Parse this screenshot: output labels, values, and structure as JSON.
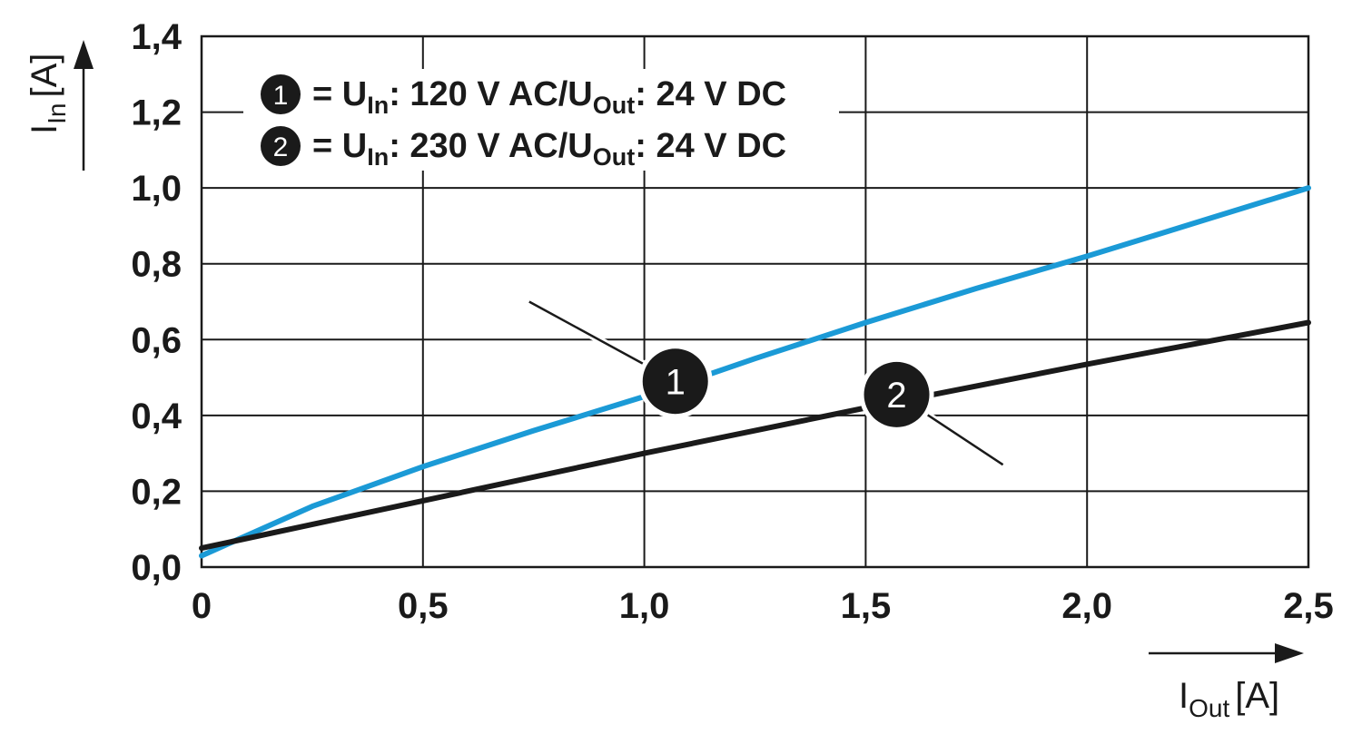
{
  "chart_data": {
    "type": "line",
    "xlim": [
      0,
      2.5
    ],
    "ylim": [
      0,
      1.4
    ],
    "x_ticks": [
      "0",
      "0,5",
      "1,0",
      "1,5",
      "2,0",
      "2,5"
    ],
    "y_ticks": [
      "0,0",
      "0,2",
      "0,4",
      "0,6",
      "0,8",
      "1,0",
      "1,2",
      "1,4"
    ],
    "grid": true,
    "xlabel": {
      "main": "I",
      "sub": "Out",
      "unit": "[A]"
    },
    "ylabel": {
      "main": "I",
      "sub": "In",
      "unit": "[A]"
    },
    "legend_position": "top-left",
    "series": [
      {
        "id": "1",
        "color": "#1b9ad6",
        "legend": {
          "number": "1",
          "pre": "= U",
          "sub1": "In",
          "mid": ": 120 V AC/U",
          "sub2": "Out",
          "post": ": 24 V DC"
        },
        "x": [
          0,
          0.25,
          0.5,
          0.75,
          1.0,
          1.25,
          1.5,
          1.75,
          2.0,
          2.25,
          2.5
        ],
        "y": [
          0.03,
          0.16,
          0.265,
          0.36,
          0.45,
          0.55,
          0.645,
          0.735,
          0.82,
          0.91,
          1.0
        ]
      },
      {
        "id": "2",
        "color": "#1a1a1a",
        "legend": {
          "number": "2",
          "pre": "= U",
          "sub1": "In",
          "mid": ": 230 V AC/U",
          "sub2": "Out",
          "post": ": 24 V DC"
        },
        "x": [
          0,
          0.5,
          1.0,
          1.5,
          2.0,
          2.5
        ],
        "y": [
          0.05,
          0.175,
          0.3,
          0.42,
          0.535,
          0.645
        ]
      }
    ],
    "annotations": [
      {
        "label": "1",
        "series": "1",
        "x": 1.07,
        "y": 0.49,
        "at_x": 0.74,
        "at_y": 0.7
      },
      {
        "label": "2",
        "series": "2",
        "x": 1.57,
        "y": 0.455,
        "at_x": 1.81,
        "at_y": 0.27
      }
    ]
  }
}
